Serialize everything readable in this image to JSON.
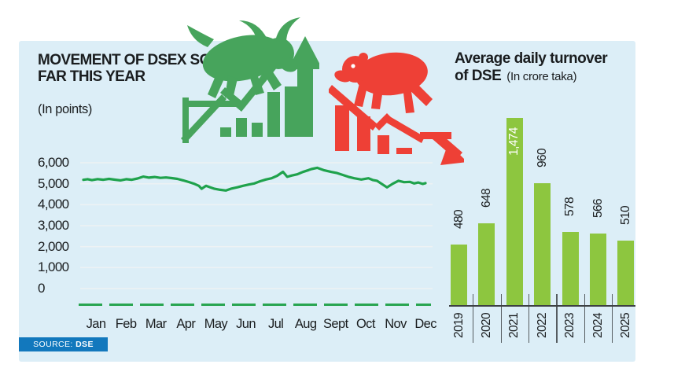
{
  "colors": {
    "panel_bg": "#dceef7",
    "dsex_line": "#1fa24c",
    "dash_line": "#29a551",
    "bar_green": "#8dc63f",
    "bull_green": "#47a45c",
    "bear_red": "#ee4036",
    "text_dark": "#1a1d1f",
    "axis_dark": "#3c4043",
    "grid_line": "#edf2f4",
    "badge_blue": "#1278bd"
  },
  "left_chart": {
    "title_line1": "MOVEMENT OF DSEX SO",
    "title_line2": "FAR THIS YEAR",
    "unit": "(In points)"
  },
  "right_chart": {
    "title_line1": "Average daily turnover",
    "title_line2": "of DSE",
    "unit": "(In crore taka)"
  },
  "source": {
    "label": "SOURCE:",
    "value": "DSE"
  },
  "icons": {
    "bull": "bull-market-rising-icon",
    "bear": "bear-market-falling-icon"
  },
  "chart_data": [
    {
      "type": "line",
      "title": "MOVEMENT OF DSEX SO FAR THIS YEAR",
      "unit": "In points",
      "line_color": "#1fa24c",
      "grid": true,
      "ylim": [
        0,
        6000
      ],
      "yticks": [
        0,
        1000,
        2000,
        3000,
        4000,
        5000,
        6000
      ],
      "ytick_labels": [
        "0",
        "1,000",
        "2,000",
        "3,000",
        "4,000",
        "5,000",
        "6,000"
      ],
      "x_labels": [
        "Jan",
        "Feb",
        "Mar",
        "Apr",
        "May",
        "Jun",
        "Jul",
        "Aug",
        "Sept",
        "Oct",
        "Nov",
        "Dec"
      ],
      "points": [
        [
          0,
          5185
        ],
        [
          0.15,
          5215
        ],
        [
          0.3,
          5170
        ],
        [
          0.5,
          5220
        ],
        [
          0.7,
          5190
        ],
        [
          0.9,
          5230
        ],
        [
          1.1,
          5195
        ],
        [
          1.3,
          5160
        ],
        [
          1.5,
          5215
        ],
        [
          1.7,
          5190
        ],
        [
          1.9,
          5250
        ],
        [
          2.1,
          5340
        ],
        [
          2.3,
          5290
        ],
        [
          2.5,
          5320
        ],
        [
          2.7,
          5280
        ],
        [
          2.9,
          5300
        ],
        [
          3.1,
          5270
        ],
        [
          3.3,
          5230
        ],
        [
          3.5,
          5160
        ],
        [
          3.7,
          5080
        ],
        [
          3.9,
          4990
        ],
        [
          4.05,
          4900
        ],
        [
          4.15,
          4760
        ],
        [
          4.3,
          4900
        ],
        [
          4.45,
          4830
        ],
        [
          4.6,
          4760
        ],
        [
          4.8,
          4710
        ],
        [
          5.0,
          4675
        ],
        [
          5.2,
          4770
        ],
        [
          5.4,
          4830
        ],
        [
          5.6,
          4900
        ],
        [
          5.8,
          4960
        ],
        [
          6.0,
          5015
        ],
        [
          6.2,
          5120
        ],
        [
          6.4,
          5200
        ],
        [
          6.6,
          5260
        ],
        [
          6.8,
          5380
        ],
        [
          7.0,
          5570
        ],
        [
          7.15,
          5330
        ],
        [
          7.3,
          5390
        ],
        [
          7.5,
          5450
        ],
        [
          7.7,
          5560
        ],
        [
          7.9,
          5650
        ],
        [
          8.0,
          5700
        ],
        [
          8.2,
          5760
        ],
        [
          8.45,
          5640
        ],
        [
          8.7,
          5560
        ],
        [
          8.9,
          5510
        ],
        [
          9.1,
          5420
        ],
        [
          9.3,
          5330
        ],
        [
          9.5,
          5260
        ],
        [
          9.75,
          5200
        ],
        [
          10.0,
          5260
        ],
        [
          10.15,
          5180
        ],
        [
          10.3,
          5140
        ],
        [
          10.5,
          4960
        ],
        [
          10.65,
          4825
        ],
        [
          10.85,
          5000
        ],
        [
          11.05,
          5140
        ],
        [
          11.25,
          5075
        ],
        [
          11.45,
          5090
        ],
        [
          11.6,
          5015
        ],
        [
          11.75,
          5060
        ],
        [
          11.9,
          4990
        ],
        [
          12,
          5030
        ]
      ]
    },
    {
      "type": "bar",
      "title": "Average daily turnover of DSE",
      "unit": "In crore taka",
      "bar_color": "#8dc63f",
      "categories": [
        "2019",
        "2020",
        "2021",
        "2022",
        "2023",
        "2024",
        "2025"
      ],
      "values": [
        480,
        648,
        1474,
        960,
        578,
        566,
        510
      ],
      "value_labels": [
        "480",
        "648",
        "1,474",
        "960",
        "578",
        "566",
        "510"
      ],
      "inside_label_index": 2,
      "ylim": [
        0,
        1500
      ]
    }
  ]
}
